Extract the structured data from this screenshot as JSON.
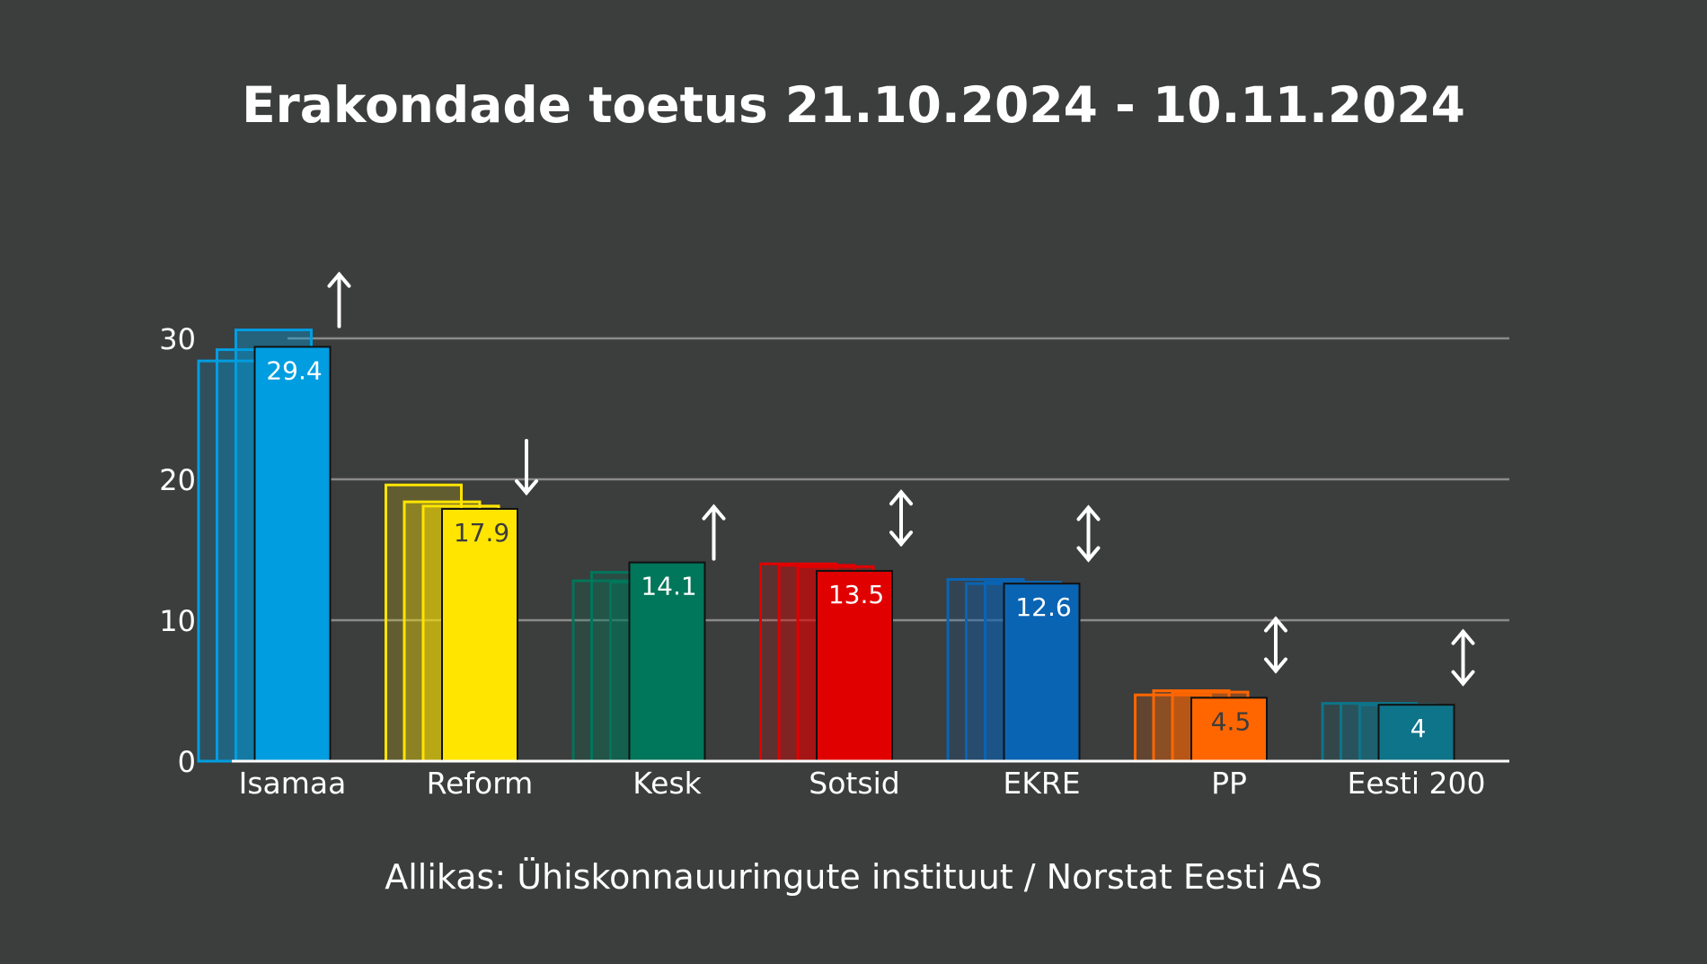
{
  "chart_data": {
    "type": "bar",
    "title": "Erakondade toetus 21.10.2024 - 10.11.2024",
    "source": "Allikas: Ühiskonnauuringute instituut / Norstat Eesti AS",
    "xlabel": "",
    "ylabel": "",
    "ylim": [
      0,
      30
    ],
    "yticks": [
      0,
      10,
      20,
      30
    ],
    "grid": true,
    "categories": [
      "Isamaa",
      "Reform",
      "Kesk",
      "Sotsid",
      "EKRE",
      "PP",
      "Eesti 200"
    ],
    "series": [
      {
        "values": [
          28.4,
          19.6,
          12.8,
          14.0,
          12.9,
          4.7,
          4.1
        ]
      },
      {
        "values": [
          29.2,
          18.4,
          13.4,
          13.9,
          12.6,
          5.0,
          4.1
        ]
      },
      {
        "values": [
          30.6,
          18.1,
          12.7,
          13.8,
          12.7,
          4.9,
          4.0
        ]
      },
      {
        "values": [
          29.4,
          17.9,
          14.1,
          13.5,
          12.6,
          4.5,
          4.0
        ]
      }
    ],
    "data_labels": [
      "29.4",
      "17.9",
      "14.1",
      "13.5",
      "12.6",
      "4.5",
      "4"
    ],
    "trend": [
      "up",
      "down",
      "up",
      "both",
      "both",
      "both",
      "both"
    ],
    "colors": [
      "#009ee0",
      "#ffe500",
      "#00765a",
      "#e10000",
      "#0a64b4",
      "#ff6600",
      "#0e7489"
    ],
    "label_colors": [
      "#ffffff",
      "#3c3c3c",
      "#ffffff",
      "#ffffff",
      "#ffffff",
      "#3c3c3c",
      "#ffffff"
    ],
    "background": "#3c3d3d",
    "text_color": "#ffffff",
    "grid_color": "#8a8a8a"
  }
}
